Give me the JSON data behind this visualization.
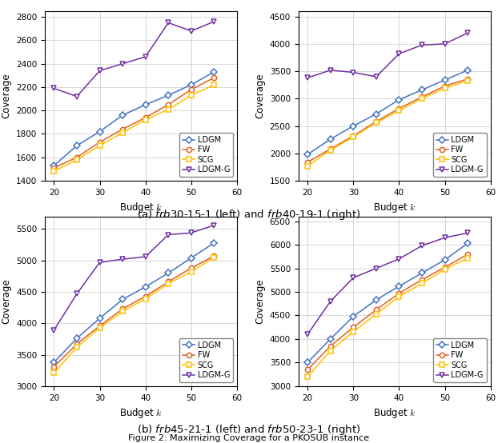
{
  "x": [
    20,
    25,
    30,
    35,
    40,
    45,
    50,
    55
  ],
  "plots": [
    {
      "title": "frb30-15-1",
      "ylim": [
        1400,
        2850
      ],
      "yticks": [
        1400,
        1600,
        1800,
        2000,
        2200,
        2400,
        2600,
        2800
      ],
      "LDGM": [
        1530,
        1700,
        1820,
        1960,
        2050,
        2130,
        2220,
        2330
      ],
      "FW": [
        1510,
        1600,
        1730,
        1840,
        1940,
        2050,
        2180,
        2280
      ],
      "SCG": [
        1480,
        1580,
        1700,
        1810,
        1920,
        2010,
        2130,
        2220
      ],
      "LDGMG": [
        2190,
        2120,
        2340,
        2400,
        2460,
        2750,
        2680,
        2760
      ]
    },
    {
      "title": "frb40-19-1",
      "ylim": [
        1500,
        4600
      ],
      "yticks": [
        1500,
        2000,
        2500,
        3000,
        3500,
        4000,
        4500
      ],
      "LDGM": [
        1980,
        2260,
        2500,
        2720,
        2980,
        3160,
        3340,
        3520
      ],
      "FW": [
        1840,
        2080,
        2320,
        2580,
        2820,
        3030,
        3230,
        3360
      ],
      "SCG": [
        1770,
        2060,
        2300,
        2560,
        2780,
        3000,
        3190,
        3330
      ],
      "LDGMG": [
        3380,
        3520,
        3480,
        3400,
        3820,
        3980,
        4000,
        4200
      ]
    },
    {
      "title": "frb45-21-1",
      "ylim": [
        3000,
        5700
      ],
      "yticks": [
        3000,
        3500,
        4000,
        4500,
        5000,
        5500
      ],
      "LDGM": [
        3380,
        3760,
        4080,
        4380,
        4580,
        4800,
        5040,
        5280
      ],
      "FW": [
        3310,
        3670,
        3960,
        4230,
        4430,
        4660,
        4880,
        5070
      ],
      "SCG": [
        3210,
        3620,
        3930,
        4190,
        4390,
        4630,
        4820,
        5050
      ],
      "LDGMG": [
        3890,
        4470,
        4970,
        5020,
        5060,
        5410,
        5440,
        5560
      ]
    },
    {
      "title": "frb50-23-1",
      "ylim": [
        3000,
        6600
      ],
      "yticks": [
        3000,
        3500,
        4000,
        4500,
        5000,
        5500,
        6000,
        6500
      ],
      "LDGM": [
        3500,
        4000,
        4480,
        4830,
        5120,
        5400,
        5680,
        6030
      ],
      "FW": [
        3350,
        3850,
        4250,
        4620,
        4970,
        5260,
        5520,
        5800
      ],
      "SCG": [
        3200,
        3750,
        4150,
        4530,
        4900,
        5180,
        5480,
        5720
      ],
      "LDGMG": [
        4100,
        4800,
        5300,
        5500,
        5700,
        5980,
        6150,
        6250
      ]
    }
  ],
  "colors": {
    "LDGM": "#4472C4",
    "FW": "#E06020",
    "SCG": "#FFC000",
    "LDGMG": "#7030A0"
  },
  "markers": {
    "LDGM": "D",
    "FW": "o",
    "SCG": "s",
    "LDGMG": "v"
  },
  "xlabel": "Budget $k$",
  "ylabel": "Coverage",
  "legend_entries": [
    "LDGM",
    "FW",
    "SCG",
    "LDGM-G"
  ]
}
